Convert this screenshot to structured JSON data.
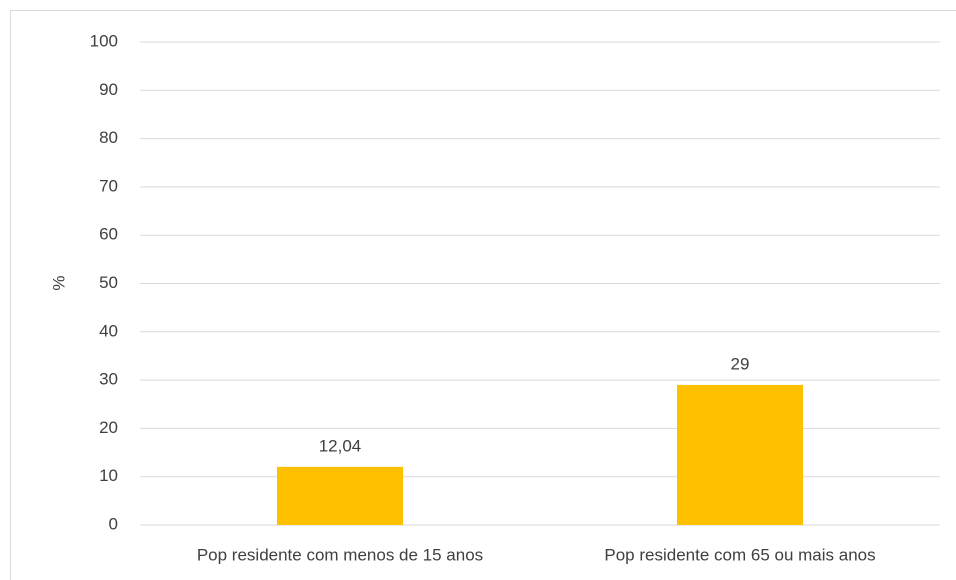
{
  "chart_data": {
    "type": "bar",
    "y_label": "%",
    "categories": [
      "Pop residente com menos de 15 anos",
      "Pop residente com 65 ou mais anos"
    ],
    "values": [
      12.04,
      29
    ],
    "value_labels": [
      "12,04",
      "29"
    ],
    "color": "#ffc000",
    "ylim": [
      0,
      100
    ],
    "yticks": [
      0,
      10,
      20,
      30,
      40,
      50,
      60,
      70,
      80,
      90,
      100
    ],
    "grid": true
  }
}
